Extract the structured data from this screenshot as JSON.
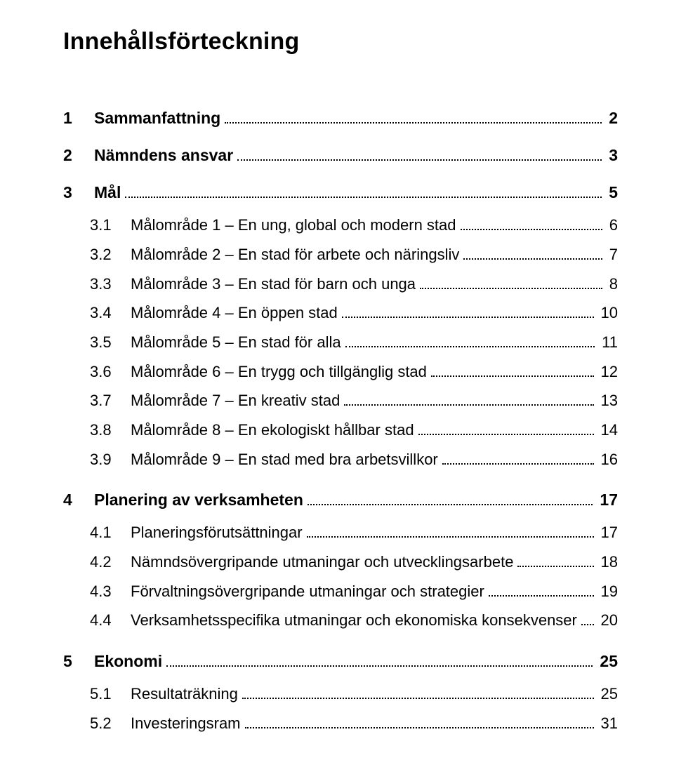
{
  "title": "Innehållsförteckning",
  "colors": {
    "text": "#000000",
    "background": "#ffffff",
    "leader": "#000000"
  },
  "typography": {
    "title_fontsize_pt": 26,
    "l1_fontsize_pt": 17,
    "l2_fontsize_pt": 16,
    "l1_weight": 700,
    "l2_weight": 400
  },
  "toc": [
    {
      "num": "1",
      "label": "Sammanfattning",
      "page": "2",
      "children": []
    },
    {
      "num": "2",
      "label": "Nämndens ansvar",
      "page": "3",
      "children": []
    },
    {
      "num": "3",
      "label": "Mål",
      "page": "5",
      "children": [
        {
          "num": "3.1",
          "label": "Målområde 1 – En ung, global och modern stad",
          "page": "6"
        },
        {
          "num": "3.2",
          "label": "Målområde 2 – En stad för arbete och näringsliv",
          "page": "7"
        },
        {
          "num": "3.3",
          "label": "Målområde 3 – En stad för barn och unga",
          "page": "8"
        },
        {
          "num": "3.4",
          "label": "Målområde 4 – En öppen stad",
          "page": "10"
        },
        {
          "num": "3.5",
          "label": "Målområde 5 – En stad för alla",
          "page": "11"
        },
        {
          "num": "3.6",
          "label": "Målområde 6 – En trygg och tillgänglig stad",
          "page": "12"
        },
        {
          "num": "3.7",
          "label": "Målområde 7 – En kreativ stad",
          "page": "13"
        },
        {
          "num": "3.8",
          "label": "Målområde 8 – En ekologiskt hållbar stad",
          "page": "14"
        },
        {
          "num": "3.9",
          "label": "Målområde 9 – En stad med bra arbetsvillkor",
          "page": "16"
        }
      ]
    },
    {
      "num": "4",
      "label": "Planering av verksamheten",
      "page": "17",
      "children": [
        {
          "num": "4.1",
          "label": "Planeringsförutsättningar",
          "page": "17"
        },
        {
          "num": "4.2",
          "label": "Nämndsövergripande utmaningar och utvecklingsarbete",
          "page": "18"
        },
        {
          "num": "4.3",
          "label": "Förvaltningsövergripande utmaningar och strategier",
          "page": "19"
        },
        {
          "num": "4.4",
          "label": "Verksamhetsspecifika utmaningar och ekonomiska konsekvenser",
          "page": "20"
        }
      ]
    },
    {
      "num": "5",
      "label": "Ekonomi",
      "page": "25",
      "children": [
        {
          "num": "5.1",
          "label": "Resultaträkning",
          "page": "25"
        },
        {
          "num": "5.2",
          "label": "Investeringsram",
          "page": "31"
        }
      ]
    }
  ]
}
